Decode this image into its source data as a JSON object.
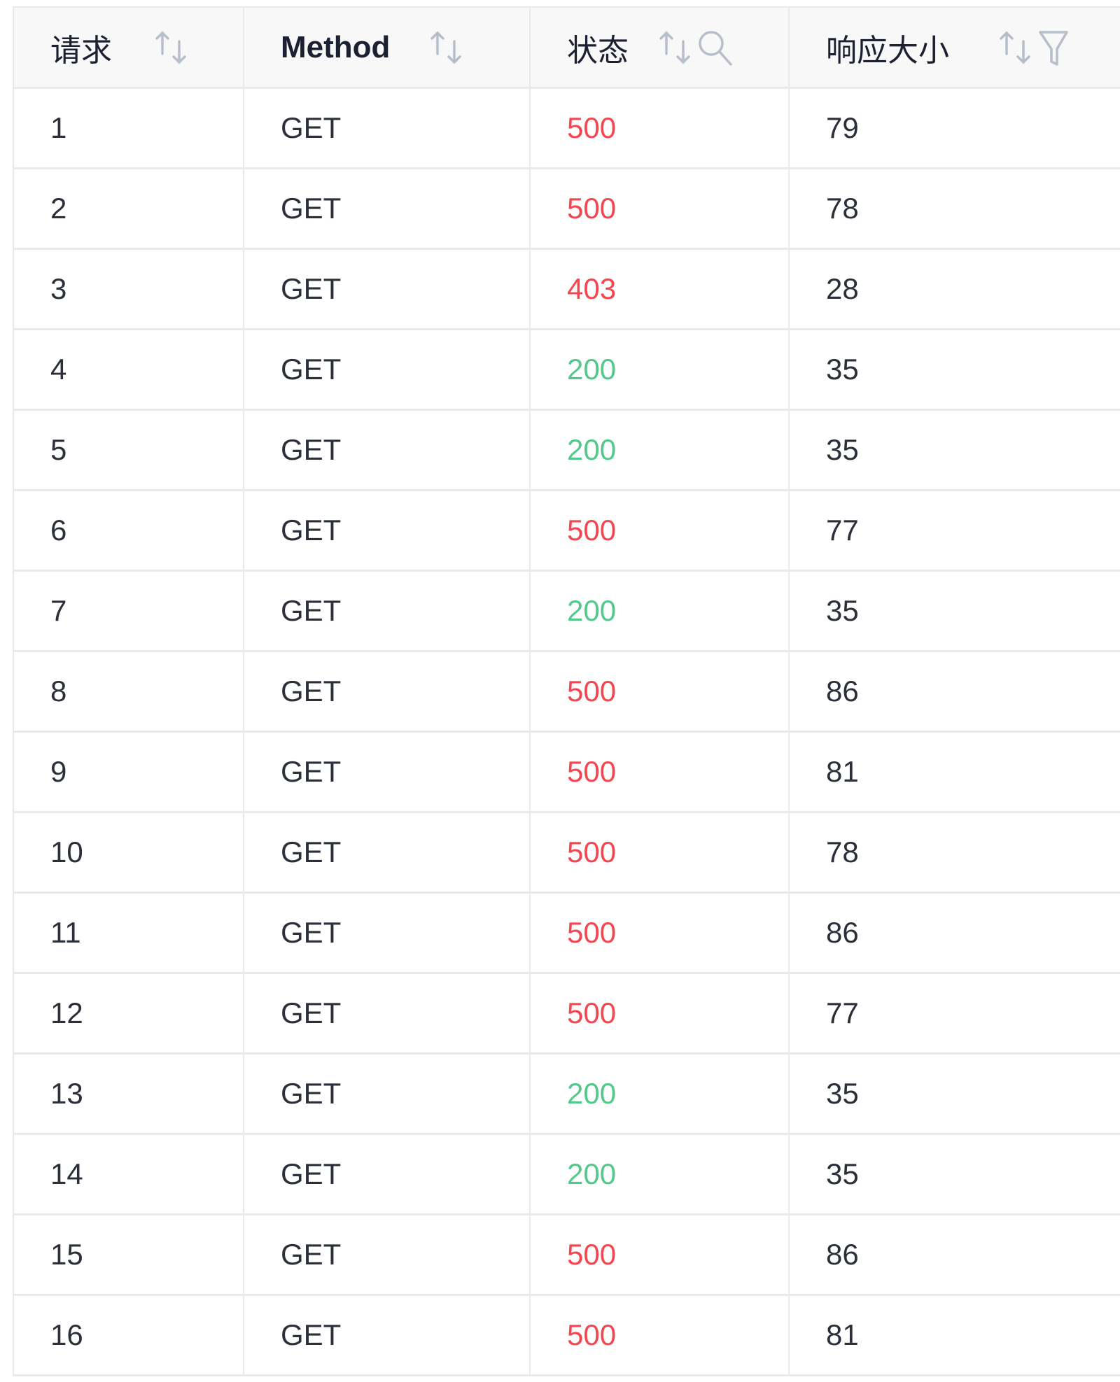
{
  "table": {
    "columns": [
      {
        "label": "请求",
        "icons": [
          "sort-icon"
        ]
      },
      {
        "label": "Method",
        "icons": [
          "sort-icon"
        ]
      },
      {
        "label": "状态",
        "icons": [
          "sort-icon",
          "search-icon"
        ]
      },
      {
        "label": "响应大小",
        "icons": [
          "sort-icon",
          "filter-icon"
        ]
      }
    ],
    "rows": [
      {
        "id": "1",
        "method": "GET",
        "status": "500",
        "size": "79"
      },
      {
        "id": "2",
        "method": "GET",
        "status": "500",
        "size": "78"
      },
      {
        "id": "3",
        "method": "GET",
        "status": "403",
        "size": "28"
      },
      {
        "id": "4",
        "method": "GET",
        "status": "200",
        "size": "35"
      },
      {
        "id": "5",
        "method": "GET",
        "status": "200",
        "size": "35"
      },
      {
        "id": "6",
        "method": "GET",
        "status": "500",
        "size": "77"
      },
      {
        "id": "7",
        "method": "GET",
        "status": "200",
        "size": "35"
      },
      {
        "id": "8",
        "method": "GET",
        "status": "500",
        "size": "86"
      },
      {
        "id": "9",
        "method": "GET",
        "status": "500",
        "size": "81"
      },
      {
        "id": "10",
        "method": "GET",
        "status": "500",
        "size": "78"
      },
      {
        "id": "11",
        "method": "GET",
        "status": "500",
        "size": "86"
      },
      {
        "id": "12",
        "method": "GET",
        "status": "500",
        "size": "77"
      },
      {
        "id": "13",
        "method": "GET",
        "status": "200",
        "size": "35"
      },
      {
        "id": "14",
        "method": "GET",
        "status": "200",
        "size": "35"
      },
      {
        "id": "15",
        "method": "GET",
        "status": "500",
        "size": "86"
      },
      {
        "id": "16",
        "method": "GET",
        "status": "500",
        "size": "81"
      }
    ]
  },
  "colors": {
    "error": "#f5454f",
    "success": "#52c98a",
    "icon": "#b8bec9"
  }
}
